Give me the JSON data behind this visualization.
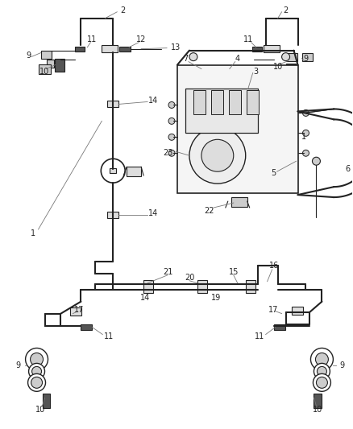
{
  "bg_color": "#ffffff",
  "line_color": "#222222",
  "label_color": "#222222",
  "fig_width": 4.38,
  "fig_height": 5.33,
  "dpi": 100
}
